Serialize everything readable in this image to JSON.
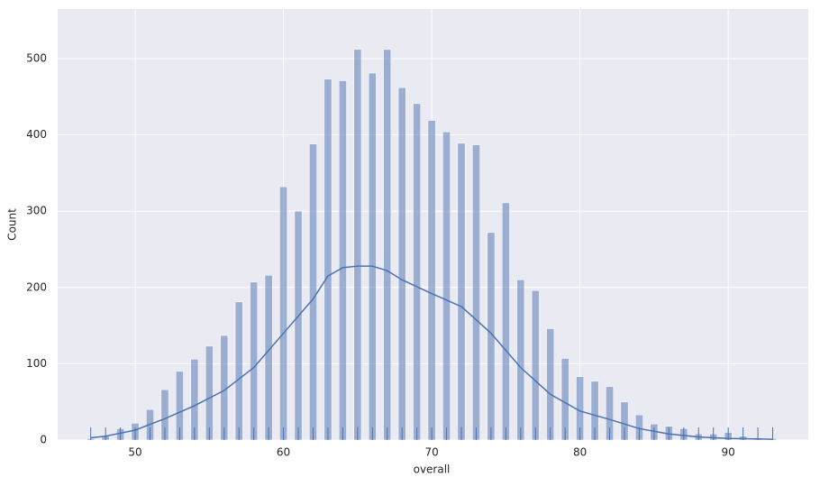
{
  "chart_data": {
    "type": "histogram",
    "x_label": "overall",
    "y_label": "Count",
    "x": [
      47,
      48,
      49,
      50,
      51,
      52,
      53,
      54,
      55,
      56,
      57,
      58,
      59,
      60,
      61,
      62,
      63,
      64,
      65,
      66,
      67,
      68,
      69,
      70,
      71,
      72,
      73,
      74,
      75,
      76,
      77,
      78,
      79,
      80,
      81,
      82,
      83,
      84,
      85,
      86,
      87,
      88,
      89,
      90,
      91,
      92,
      93
    ],
    "values": [
      2,
      5,
      15,
      22,
      40,
      66,
      90,
      106,
      123,
      137,
      181,
      207,
      216,
      332,
      300,
      388,
      473,
      471,
      512,
      481,
      512,
      462,
      441,
      419,
      404,
      389,
      387,
      272,
      311,
      210,
      196,
      146,
      107,
      83,
      77,
      70,
      50,
      33,
      21,
      18,
      15,
      8,
      8,
      10,
      5,
      3,
      2
    ],
    "binwidth": 0.5,
    "color": "#4c72b0",
    "kde": {
      "x": [
        47,
        48,
        50,
        52,
        54,
        56,
        58,
        60,
        62,
        63,
        64,
        65,
        66,
        67,
        68,
        70,
        72,
        74,
        76,
        78,
        80,
        82,
        84,
        86,
        88,
        90,
        93
      ],
      "values": [
        3,
        5,
        13,
        28,
        45,
        65,
        95,
        140,
        185,
        215,
        226,
        228,
        228,
        222,
        210,
        192,
        175,
        140,
        95,
        60,
        38,
        27,
        15,
        8,
        4,
        2,
        1
      ]
    },
    "rug": true,
    "xlim": [
      44.77,
      95.4
    ],
    "xticks": [
      50,
      60,
      70,
      80,
      90
    ],
    "ylim": [
      0,
      565
    ],
    "yticks": [
      0,
      100,
      200,
      300,
      400,
      500
    ],
    "grid": true
  }
}
